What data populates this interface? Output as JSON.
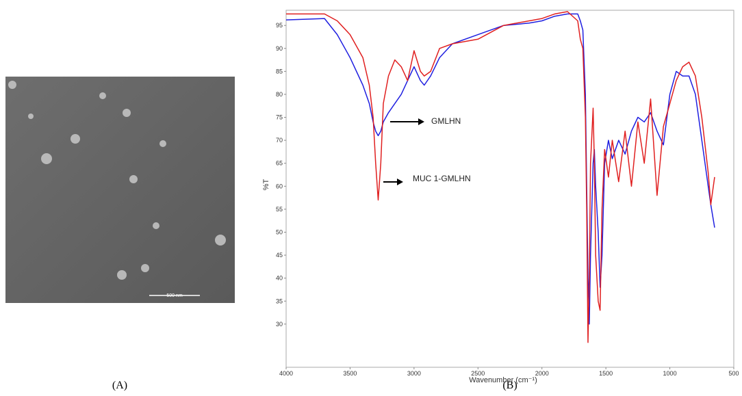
{
  "panels": {
    "a_label": "(A)",
    "b_label": "(B)"
  },
  "sem": {
    "scale_bar": "500 nm"
  },
  "chart_data": {
    "type": "line",
    "x_label": "Wavenumber (cm⁻¹)",
    "y_label": "%T",
    "x": [
      4000,
      3700,
      3600,
      3500,
      3400,
      3350,
      3320,
      3300,
      3280,
      3260,
      3240,
      3200,
      3150,
      3100,
      3050,
      3000,
      2950,
      2920,
      2870,
      2800,
      2700,
      2500,
      2300,
      2100,
      2000,
      1900,
      1800,
      1720,
      1700,
      1680,
      1660,
      1650,
      1640,
      1630,
      1620,
      1600,
      1590,
      1580,
      1560,
      1545,
      1530,
      1510,
      1480,
      1450,
      1400,
      1350,
      1300,
      1250,
      1200,
      1150,
      1100,
      1050,
      1000,
      950,
      900,
      850,
      800,
      750,
      700,
      680,
      650
    ],
    "series": [
      {
        "name": "GMLHN",
        "color": "#1f1fe0",
        "values": [
          96.2,
          96.5,
          93,
          88,
          82,
          78,
          74,
          72,
          71,
          72,
          74,
          76,
          78,
          80,
          83,
          86,
          83,
          82,
          84,
          88,
          91,
          93,
          95,
          95.5,
          96,
          97,
          97.5,
          97.5,
          96,
          94,
          80,
          60,
          40,
          30,
          45,
          65,
          68,
          60,
          50,
          38,
          45,
          65,
          70,
          66,
          70,
          67,
          72,
          75,
          74,
          76,
          72,
          69,
          80,
          85,
          84,
          84,
          80,
          70,
          60,
          56,
          51
        ]
      },
      {
        "name": "MUC 1-GMLHN",
        "color": "#e01f1f",
        "values": [
          97.5,
          97.5,
          96,
          93,
          88,
          82,
          75,
          65,
          57,
          65,
          78,
          84,
          87.5,
          86,
          83,
          89.5,
          85,
          84,
          85,
          90,
          91,
          92,
          95,
          96,
          96.5,
          97.5,
          98,
          96,
          92,
          90,
          75,
          55,
          26,
          40,
          65,
          77,
          65,
          45,
          35,
          33,
          55,
          68,
          62,
          70,
          61,
          72,
          60,
          74,
          65,
          79,
          58,
          73,
          78,
          83,
          86,
          87,
          84,
          75,
          63,
          56,
          62
        ]
      }
    ],
    "xlim": [
      4000,
      500
    ],
    "xticks": [
      4000,
      3500,
      3000,
      2500,
      2000,
      1500,
      1000,
      500
    ],
    "ylim": [
      20.6,
      98.3
    ],
    "yticks": [
      30,
      35,
      40,
      45,
      50,
      55,
      60,
      65,
      70,
      75,
      80,
      85,
      90,
      95
    ]
  }
}
